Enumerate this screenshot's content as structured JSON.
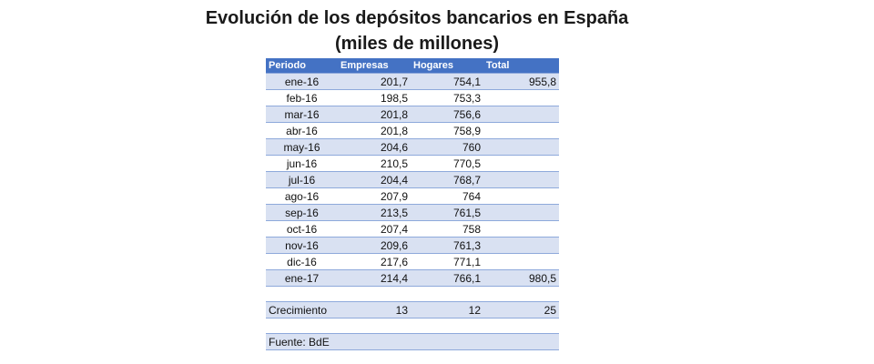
{
  "chart_data": {
    "type": "table",
    "title_line1": "Evolución de los depósitos bancarios en España",
    "title_line2": "(miles de millones)",
    "columns": [
      "Periodo",
      "Empresas",
      "Hogares",
      "Total"
    ],
    "rows": [
      {
        "period": "ene-16",
        "empresas": "201,7",
        "hogares": "754,1",
        "total": "955,8"
      },
      {
        "period": "feb-16",
        "empresas": "198,5",
        "hogares": "753,3",
        "total": ""
      },
      {
        "period": "mar-16",
        "empresas": "201,8",
        "hogares": "756,6",
        "total": ""
      },
      {
        "period": "abr-16",
        "empresas": "201,8",
        "hogares": "758,9",
        "total": ""
      },
      {
        "period": "may-16",
        "empresas": "204,6",
        "hogares": "760",
        "total": ""
      },
      {
        "period": "jun-16",
        "empresas": "210,5",
        "hogares": "770,5",
        "total": ""
      },
      {
        "period": "jul-16",
        "empresas": "204,4",
        "hogares": "768,7",
        "total": ""
      },
      {
        "period": "ago-16",
        "empresas": "207,9",
        "hogares": "764",
        "total": ""
      },
      {
        "period": "sep-16",
        "empresas": "213,5",
        "hogares": "761,5",
        "total": ""
      },
      {
        "period": "oct-16",
        "empresas": "207,4",
        "hogares": "758",
        "total": ""
      },
      {
        "period": "nov-16",
        "empresas": "209,6",
        "hogares": "761,3",
        "total": ""
      },
      {
        "period": "dic-16",
        "empresas": "217,6",
        "hogares": "771,1",
        "total": ""
      },
      {
        "period": "ene-17",
        "empresas": "214,4",
        "hogares": "766,1",
        "total": "980,5"
      }
    ],
    "growth": {
      "label": "Crecimiento",
      "empresas": "13",
      "hogares": "12",
      "total": "25"
    },
    "source": "Fuente: BdE",
    "colors": {
      "header_bg": "#4472c4",
      "header_text": "#ffffff",
      "band": "#d9e1f2",
      "border": "#8ea9db"
    }
  }
}
